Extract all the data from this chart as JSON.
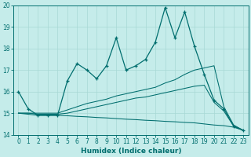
{
  "xlabel": "Humidex (Indice chaleur)",
  "ylabel": "",
  "background_color": "#c5ecea",
  "grid_color": "#a8d8d5",
  "line_color": "#006e6e",
  "xlim": [
    -0.5,
    23.5
  ],
  "ylim": [
    14,
    20
  ],
  "xticks": [
    0,
    1,
    2,
    3,
    4,
    5,
    6,
    7,
    8,
    9,
    10,
    11,
    12,
    13,
    14,
    15,
    16,
    17,
    18,
    19,
    20,
    21,
    22,
    23
  ],
  "yticks": [
    14,
    15,
    16,
    17,
    18,
    19,
    20
  ],
  "series": {
    "main": {
      "x": [
        0,
        1,
        2,
        3,
        4,
        5,
        6,
        7,
        8,
        9,
        10,
        11,
        12,
        13,
        14,
        15,
        16,
        17,
        18,
        19,
        20,
        21,
        22,
        23
      ],
      "y": [
        16.0,
        15.2,
        14.9,
        14.9,
        14.9,
        16.5,
        17.3,
        17.0,
        16.6,
        17.2,
        18.5,
        17.0,
        17.2,
        17.5,
        18.3,
        19.9,
        18.5,
        19.7,
        18.1,
        16.8,
        15.6,
        15.2,
        14.4,
        14.2
      ]
    },
    "line2": {
      "x": [
        0,
        1,
        2,
        3,
        4,
        5,
        6,
        7,
        8,
        9,
        10,
        11,
        12,
        13,
        14,
        15,
        16,
        17,
        18,
        19,
        20,
        21,
        22,
        23
      ],
      "y": [
        15.0,
        15.0,
        15.0,
        15.0,
        15.0,
        15.15,
        15.3,
        15.45,
        15.55,
        15.65,
        15.8,
        15.9,
        16.0,
        16.1,
        16.2,
        16.4,
        16.55,
        16.8,
        17.0,
        17.1,
        17.2,
        15.3,
        14.45,
        14.2
      ]
    },
    "line3": {
      "x": [
        0,
        1,
        2,
        3,
        4,
        5,
        6,
        7,
        8,
        9,
        10,
        11,
        12,
        13,
        14,
        15,
        16,
        17,
        18,
        19,
        20,
        21,
        22,
        23
      ],
      "y": [
        15.0,
        15.0,
        14.95,
        14.95,
        14.95,
        15.0,
        15.1,
        15.2,
        15.3,
        15.4,
        15.5,
        15.6,
        15.7,
        15.75,
        15.85,
        15.95,
        16.05,
        16.15,
        16.25,
        16.3,
        15.5,
        15.1,
        14.4,
        14.2
      ]
    },
    "line4": {
      "x": [
        0,
        1,
        2,
        3,
        4,
        5,
        6,
        7,
        8,
        9,
        10,
        11,
        12,
        13,
        14,
        15,
        16,
        17,
        18,
        19,
        20,
        21,
        22,
        23
      ],
      "y": [
        15.0,
        14.95,
        14.9,
        14.9,
        14.9,
        14.88,
        14.85,
        14.83,
        14.8,
        14.78,
        14.75,
        14.72,
        14.7,
        14.67,
        14.65,
        14.62,
        14.6,
        14.57,
        14.55,
        14.5,
        14.45,
        14.42,
        14.35,
        14.2
      ]
    }
  }
}
